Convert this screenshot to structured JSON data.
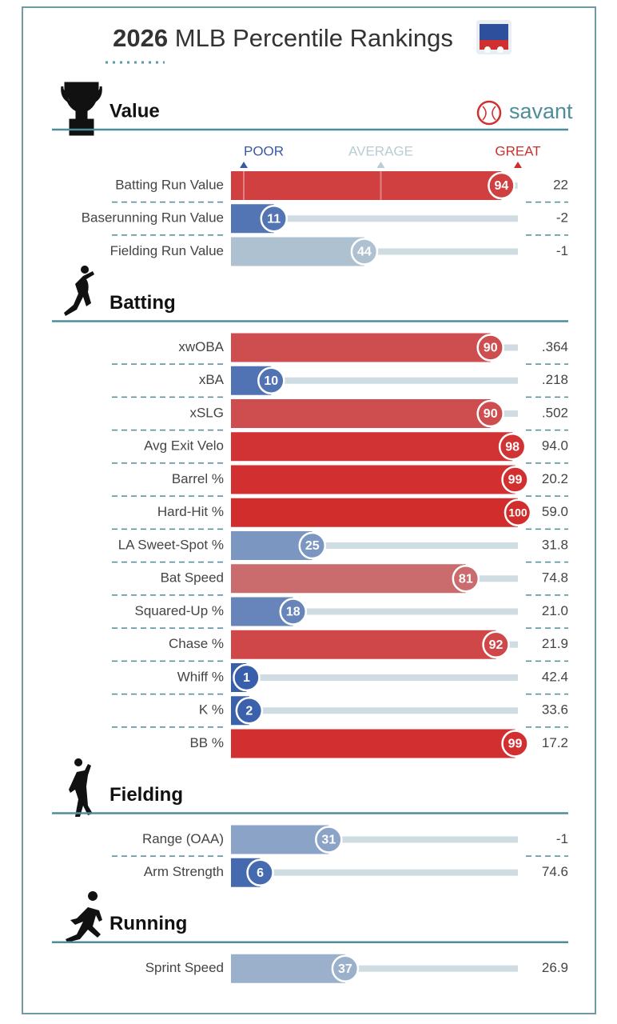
{
  "header": {
    "year": "2026",
    "title": "MLB Percentile Rankings",
    "logo": "savant"
  },
  "legend": {
    "xlim": [
      0,
      100
    ],
    "xticks": [
      {
        "value": 0,
        "label": "POOR"
      },
      {
        "value": 50,
        "label": "AVERAGE"
      },
      {
        "value": 100,
        "label": "GREAT"
      }
    ]
  },
  "sections": [
    {
      "title": "Value",
      "rows": [
        {
          "label": "Batting Run Value",
          "percentile": 94,
          "value": "22"
        },
        {
          "label": "Baserunning Run Value",
          "percentile": 11,
          "value": "-2"
        },
        {
          "label": "Fielding Run Value",
          "percentile": 44,
          "value": "-1"
        }
      ]
    },
    {
      "title": "Batting",
      "rows": [
        {
          "label": "xwOBA",
          "percentile": 90,
          "value": ".364"
        },
        {
          "label": "xBA",
          "percentile": 10,
          "value": ".218"
        },
        {
          "label": "xSLG",
          "percentile": 90,
          "value": ".502"
        },
        {
          "label": "Avg Exit Velo",
          "percentile": 98,
          "value": "94.0"
        },
        {
          "label": "Barrel %",
          "percentile": 99,
          "value": "20.2"
        },
        {
          "label": "Hard-Hit %",
          "percentile": 100,
          "value": "59.0"
        },
        {
          "label": "LA Sweet-Spot %",
          "percentile": 25,
          "value": "31.8"
        },
        {
          "label": "Bat Speed",
          "percentile": 81,
          "value": "74.8"
        },
        {
          "label": "Squared-Up %",
          "percentile": 18,
          "value": "21.0"
        },
        {
          "label": "Chase %",
          "percentile": 92,
          "value": "21.9"
        },
        {
          "label": "Whiff %",
          "percentile": 1,
          "value": "42.4"
        },
        {
          "label": "K %",
          "percentile": 2,
          "value": "33.6"
        },
        {
          "label": "BB %",
          "percentile": 99,
          "value": "17.2"
        }
      ]
    },
    {
      "title": "Fielding",
      "rows": [
        {
          "label": "Range (OAA)",
          "percentile": 31,
          "value": "-1"
        },
        {
          "label": "Arm Strength",
          "percentile": 6,
          "value": "74.6"
        }
      ]
    },
    {
      "title": "Running",
      "rows": [
        {
          "label": "Sprint Speed",
          "percentile": 37,
          "value": "26.9"
        }
      ]
    }
  ]
}
